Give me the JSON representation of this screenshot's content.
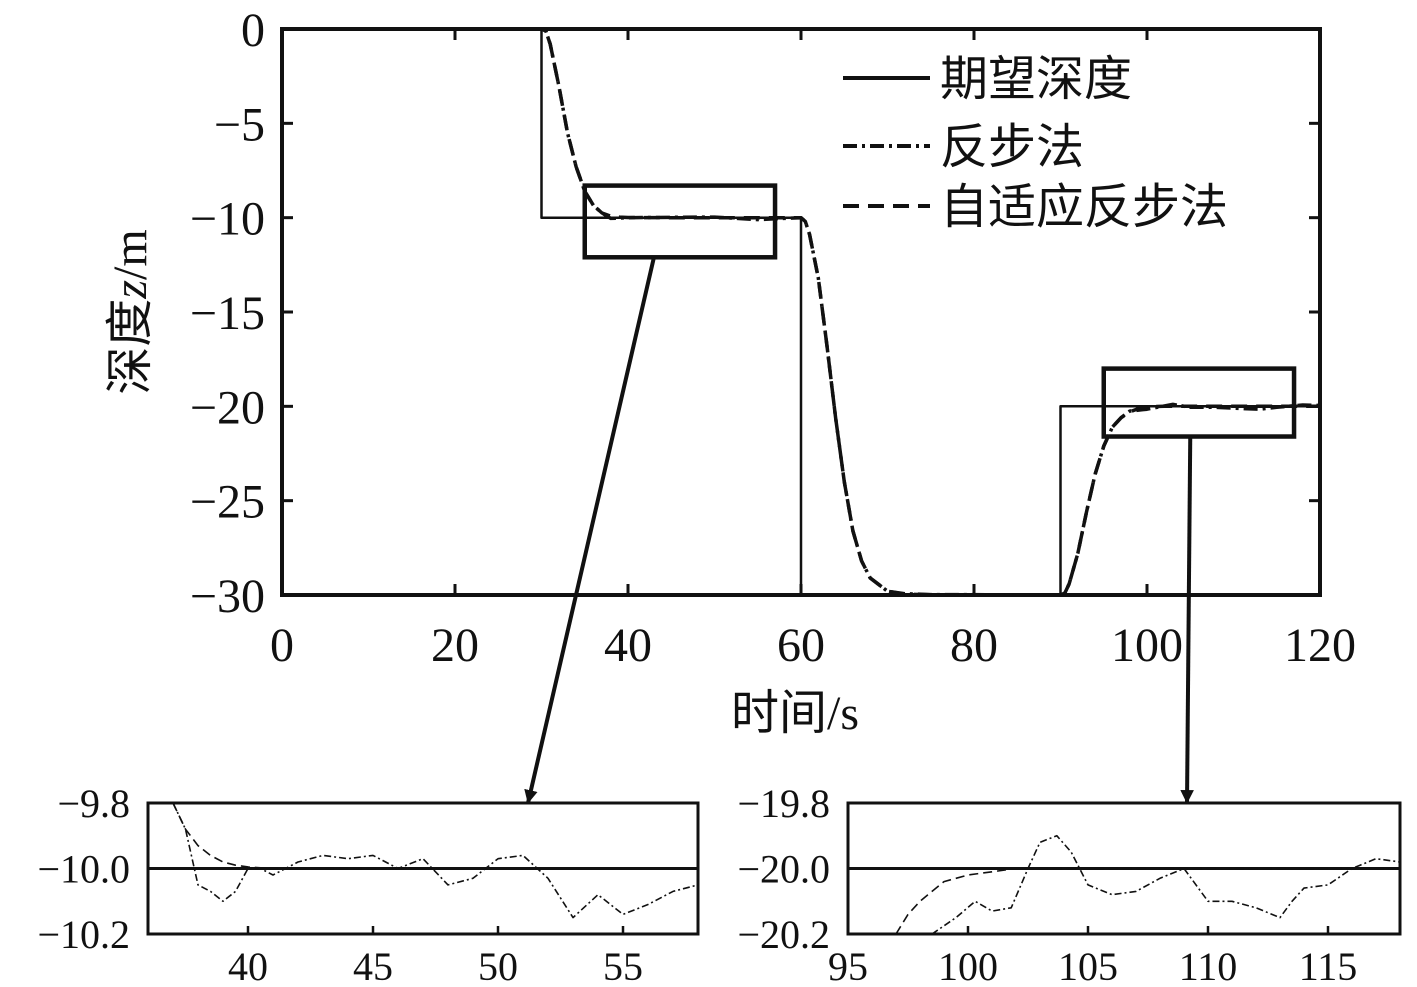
{
  "chart_data": {
    "type": "line",
    "xlabel": "时间/s",
    "ylabel": "深度z/m",
    "ylabel_parts": [
      "深度",
      "z",
      "/m"
    ],
    "xlim": [
      0,
      120
    ],
    "ylim": [
      -30,
      0
    ],
    "x_ticks": [
      0,
      20,
      40,
      60,
      80,
      100,
      120
    ],
    "y_ticks": [
      0,
      -5,
      -10,
      -15,
      -20,
      -25,
      -30
    ],
    "x_tick_labels": [
      "0",
      "20",
      "40",
      "60",
      "80",
      "100",
      "120"
    ],
    "y_tick_labels": [
      "0",
      "−5",
      "−10",
      "−15",
      "−20",
      "−25",
      "−30"
    ],
    "legend_position": "top-right",
    "series": [
      {
        "name": "期望深度",
        "style": "solid",
        "x": [
          0,
          30,
          30,
          60,
          60,
          90,
          90,
          120
        ],
        "y": [
          0,
          0,
          -10,
          -10,
          -30,
          -30,
          -20,
          -20
        ]
      },
      {
        "name": "反步法",
        "style": "dash-dot",
        "x": [
          0,
          30,
          30.5,
          31,
          32,
          33,
          34,
          35,
          36,
          37,
          38,
          40,
          45,
          50,
          55,
          58,
          60,
          60.5,
          61,
          62,
          63,
          64,
          65,
          66,
          67,
          68,
          70,
          72,
          75,
          80,
          85,
          90,
          90.5,
          91,
          92,
          93,
          94,
          95,
          96,
          97,
          98,
          100,
          103,
          105,
          108,
          110,
          113,
          115,
          118,
          120
        ],
        "y": [
          0,
          0,
          -0.1,
          -0.8,
          -3.0,
          -5.5,
          -7.3,
          -8.6,
          -9.35,
          -9.75,
          -10.04,
          -10.0,
          -9.98,
          -9.97,
          -10.1,
          -10.04,
          -10.0,
          -10.2,
          -10.9,
          -13.2,
          -16.8,
          -20.6,
          -24.0,
          -26.6,
          -28.2,
          -29.1,
          -29.8,
          -29.93,
          -29.98,
          -29.98,
          -30.0,
          -30.0,
          -29.9,
          -29.4,
          -27.8,
          -25.6,
          -23.6,
          -22.1,
          -21.1,
          -20.6,
          -20.25,
          -20.15,
          -19.9,
          -20.05,
          -20.05,
          -20.1,
          -20.15,
          -20.05,
          -19.93,
          -19.95
        ]
      },
      {
        "name": "自适应反步法",
        "style": "dashed",
        "x": [
          0,
          30,
          30.5,
          31,
          32,
          33,
          34,
          35,
          36,
          37,
          38,
          39,
          40,
          45,
          50,
          55,
          58,
          60,
          60.5,
          61,
          62,
          63,
          64,
          65,
          66,
          67,
          68,
          70,
          72,
          75,
          80,
          85,
          90,
          90.5,
          91,
          92,
          93,
          94,
          95,
          96,
          97,
          98,
          99,
          100,
          101,
          102,
          105,
          110,
          115,
          118,
          120
        ],
        "y": [
          0,
          0,
          -0.1,
          -0.8,
          -3.0,
          -5.5,
          -7.3,
          -8.6,
          -9.35,
          -9.75,
          -9.92,
          -9.97,
          -9.99,
          -10.0,
          -10.0,
          -10.0,
          -10.0,
          -10.0,
          -10.2,
          -10.9,
          -13.2,
          -16.8,
          -20.6,
          -24.0,
          -26.6,
          -28.2,
          -29.1,
          -29.8,
          -29.95,
          -29.99,
          -30.0,
          -30.0,
          -30.0,
          -29.9,
          -29.4,
          -27.8,
          -25.6,
          -23.6,
          -22.1,
          -21.1,
          -20.6,
          -20.3,
          -20.12,
          -20.04,
          -20.01,
          -20.0,
          -20.0,
          -20.0,
          -20.0,
          -20.0,
          -20.0
        ]
      }
    ],
    "zoom_boxes": [
      {
        "x": [
          35,
          57
        ],
        "y": [
          -8.3,
          -12.1
        ],
        "target": 0
      },
      {
        "x": [
          95,
          117
        ],
        "y": [
          -18.0,
          -21.6
        ],
        "target": 1
      }
    ],
    "insets": [
      {
        "xlim": [
          36,
          58
        ],
        "ylim": [
          -10.2,
          -9.8
        ],
        "x_ticks": [
          40,
          45,
          50,
          55
        ],
        "x_tick_labels": [
          "40",
          "45",
          "50",
          "55"
        ],
        "y_ticks": [
          -9.8,
          -10.0,
          -10.2
        ],
        "y_tick_labels": [
          "−9.8",
          "−10.0",
          "−10.2"
        ],
        "series": [
          {
            "name": "期望深度",
            "style": "solid",
            "x": [
              36,
              58
            ],
            "y": [
              -10.0,
              -10.0
            ]
          },
          {
            "name": "反步法",
            "style": "dash-dot",
            "x": [
              37.0,
              37.5,
              38.0,
              38.5,
              39.0,
              39.5,
              40.0,
              40.5,
              41.0,
              42.0,
              43.0,
              44.0,
              45.0,
              46.0,
              47.0,
              48.0,
              49.0,
              50.0,
              51.0,
              52.0,
              53.0,
              54.0,
              55.0,
              56.0,
              57.0,
              58.0
            ],
            "y": [
              -9.8,
              -9.88,
              -10.05,
              -10.07,
              -10.1,
              -10.07,
              -10.0,
              -10.0,
              -10.02,
              -9.98,
              -9.96,
              -9.97,
              -9.96,
              -10.0,
              -9.97,
              -10.05,
              -10.03,
              -9.97,
              -9.96,
              -10.03,
              -10.15,
              -10.08,
              -10.14,
              -10.11,
              -10.07,
              -10.05
            ]
          },
          {
            "name": "自适应反步法",
            "style": "dashed",
            "x": [
              37.0,
              37.5,
              38.0,
              38.5,
              39.0,
              39.5,
              40.0,
              40.5,
              41.0,
              42.0,
              43.0,
              44.0,
              45.0,
              46.0,
              47.0
            ],
            "y": [
              -9.8,
              -9.88,
              -9.93,
              -9.96,
              -9.98,
              -9.99,
              -9.995,
              -9.998,
              -10.0,
              -10.0,
              -10.0,
              -10.0,
              -10.0,
              -10.0,
              -10.0
            ]
          }
        ]
      },
      {
        "xlim": [
          95,
          118
        ],
        "ylim": [
          -20.2,
          -19.8
        ],
        "x_ticks": [
          95,
          100,
          105,
          110,
          115
        ],
        "x_tick_labels": [
          "95",
          "100",
          "105",
          "110",
          "115"
        ],
        "y_ticks": [
          -19.8,
          -20.0,
          -20.2
        ],
        "y_tick_labels": [
          "−19.8",
          "−20.0",
          "−20.2"
        ],
        "series": [
          {
            "name": "期望深度",
            "style": "solid",
            "x": [
              95,
              118
            ],
            "y": [
              -20.0,
              -20.0
            ]
          },
          {
            "name": "反步法",
            "style": "dash-dot",
            "x": [
              98.5,
              99.5,
              100.3,
              101.0,
              101.8,
              102.5,
              103.0,
              103.7,
              104.3,
              105.0,
              106.0,
              107.0,
              108.0,
              109.0,
              110.0,
              111.0,
              112.0,
              113.0,
              113.5,
              114.0,
              115.0,
              116.0,
              117.0,
              118.0
            ],
            "y": [
              -20.2,
              -20.15,
              -20.1,
              -20.13,
              -20.12,
              -20.0,
              -19.92,
              -19.9,
              -19.95,
              -20.05,
              -20.08,
              -20.07,
              -20.03,
              -20.0,
              -20.1,
              -20.1,
              -20.12,
              -20.15,
              -20.1,
              -20.06,
              -20.05,
              -20.0,
              -19.97,
              -19.98
            ]
          },
          {
            "name": "自适应反步法",
            "style": "dashed",
            "x": [
              97.0,
              97.5,
              98.0,
              98.5,
              99.0,
              99.5,
              100.0,
              101.0,
              102.0,
              103.0,
              105.0,
              110.0,
              115.0,
              118.0
            ],
            "y": [
              -20.2,
              -20.14,
              -20.1,
              -20.07,
              -20.04,
              -20.03,
              -20.02,
              -20.01,
              -20.0,
              -20.0,
              -20.0,
              -20.0,
              -20.0,
              -20.0
            ]
          }
        ]
      }
    ]
  }
}
